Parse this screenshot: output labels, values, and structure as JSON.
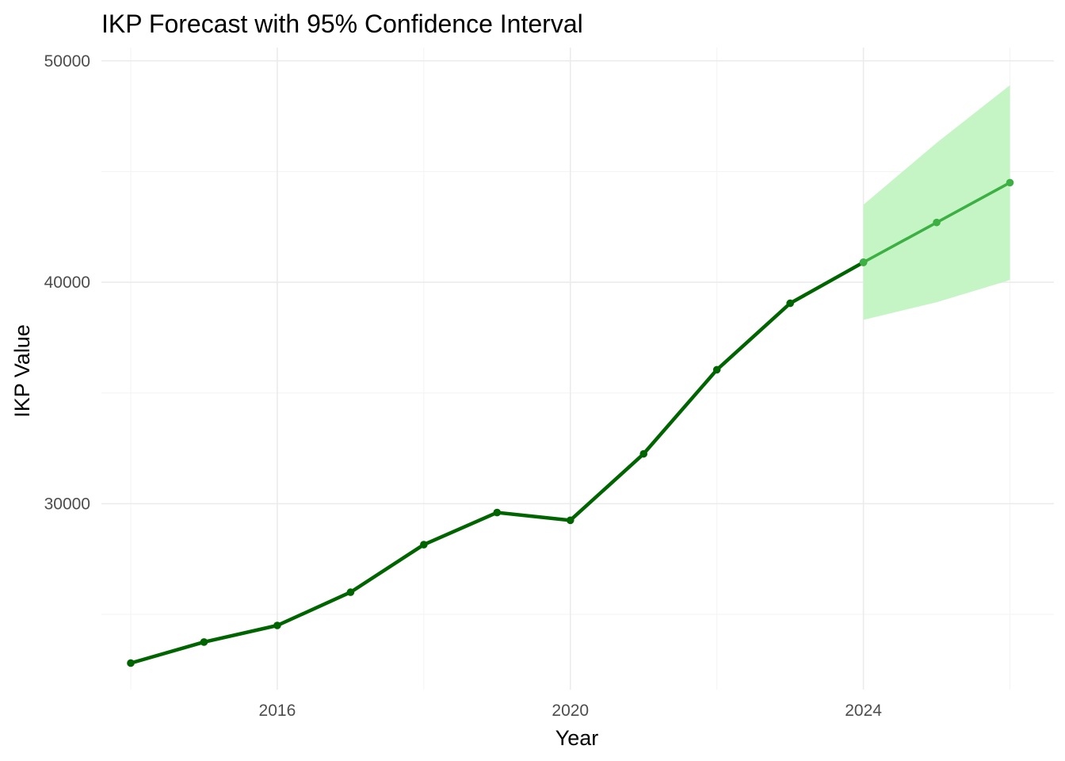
{
  "chart_data": {
    "type": "line",
    "title": "IKP Forecast with 95% Confidence Interval",
    "xlabel": "Year",
    "ylabel": "IKP Value",
    "xlim": [
      2013.6,
      2026.6
    ],
    "ylim": [
      21600,
      50600
    ],
    "x_ticks": [
      2016,
      2020,
      2024
    ],
    "y_ticks": [
      30000,
      40000,
      50000
    ],
    "grid": true,
    "legend": "none",
    "series": [
      {
        "kind": "historical",
        "color": "#006400",
        "x": [
          2014,
          2015,
          2016,
          2017,
          2018,
          2019,
          2020,
          2021,
          2022,
          2023,
          2024
        ],
        "values": [
          22800,
          23750,
          24500,
          26000,
          28150,
          29600,
          29250,
          32250,
          36050,
          39050,
          40900
        ]
      },
      {
        "kind": "forecast",
        "color": "#3cb043",
        "x": [
          2024,
          2025,
          2026
        ],
        "values": [
          40900,
          42700,
          44500
        ],
        "lower": [
          38300,
          39100,
          40100
        ],
        "upper": [
          43500,
          46300,
          48900
        ],
        "band_color": "#c5f5c5"
      }
    ]
  }
}
